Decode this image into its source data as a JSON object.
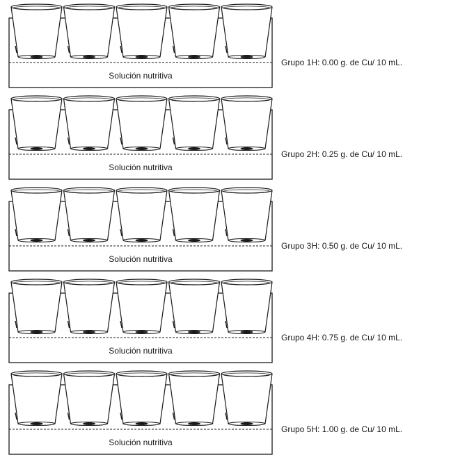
{
  "diagram": {
    "tray_label": "Solución nutritiva",
    "groups": [
      {
        "label": "Grupo 1H: 0.00 g. de Cu/ 10 mL."
      },
      {
        "label": "Grupo 2H: 0.25 g. de Cu/ 10 mL."
      },
      {
        "label": "Grupo 3H: 0.50 g. de Cu/ 10 mL."
      },
      {
        "label": "Grupo 4H: 0.75 g. de Cu/ 10 mL."
      },
      {
        "label": "Grupo 5H: 1.00 g. de Cu/ 10 mL."
      }
    ],
    "cups_per_group": 5
  }
}
